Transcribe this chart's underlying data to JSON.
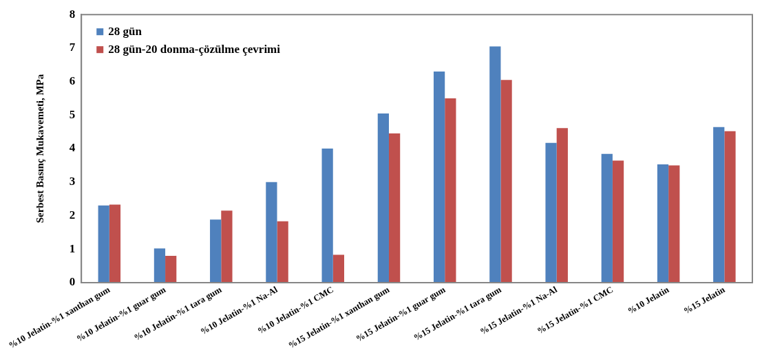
{
  "chart_data": {
    "type": "bar",
    "ylabel": "Serbest Basınç Mukavemeti, MPa",
    "categories": [
      "%10 Jelatin-%1 xanthan gum",
      "%10 Jelatin-%1 guar gum",
      "%10 Jelatin-%1 tara gum",
      "%10 Jelatin-%1 Na-Al",
      "%10 Jelatin-%1 CMC",
      "%15 Jelatin-%1 xanthan gum",
      "%15 Jelatin-%1 guar gum",
      "%15 Jelatin-%1 tara gum",
      "%15 Jelatin-%1 Na-Al",
      "%15 Jelatin-%1 CMC",
      "%10 Jelatin",
      "%15 Jelatin"
    ],
    "series": [
      {
        "name": "28 gün",
        "color": "#4f81bd",
        "values": [
          2.3,
          1.02,
          1.88,
          3.0,
          4.0,
          5.05,
          6.3,
          7.05,
          4.17,
          3.84,
          3.53,
          4.64
        ]
      },
      {
        "name": "28 gün-20 donma-çözülme çevrimi",
        "color": "#c0504d",
        "values": [
          2.33,
          0.8,
          2.15,
          1.83,
          0.83,
          4.45,
          5.5,
          6.05,
          4.61,
          3.64,
          3.5,
          4.52
        ]
      }
    ],
    "ylim": [
      0,
      8
    ],
    "yticks": [
      0,
      1,
      2,
      3,
      4,
      5,
      6,
      7,
      8
    ],
    "grid": false,
    "legend": "top left"
  }
}
